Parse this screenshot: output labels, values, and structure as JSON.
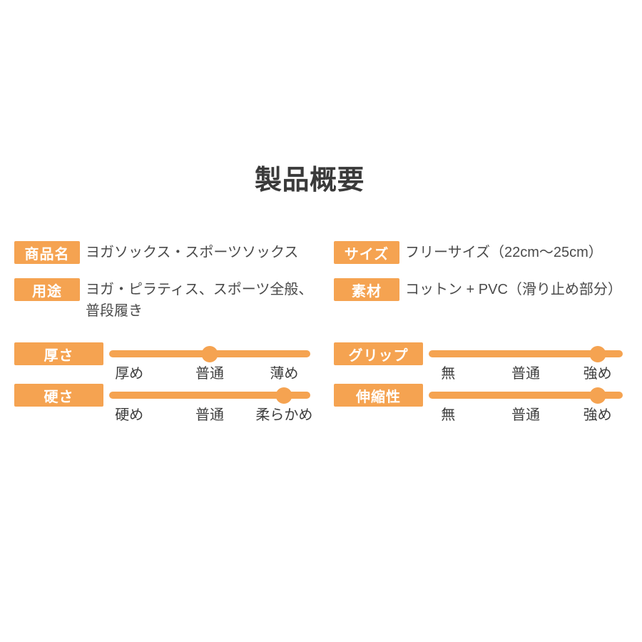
{
  "page": {
    "title": "製品概要",
    "background_color": "#ffffff",
    "accent_color": "#F5A351",
    "title_color": "#3a3a3a",
    "body_text_color": "#4a4a4a"
  },
  "left_column": {
    "info_rows": [
      {
        "label": "商品名",
        "value": "ヨガソックス・スポーツソックス"
      },
      {
        "label": "用途",
        "value_lines": [
          "ヨガ・ピラティス、スポーツ全般、",
          "普段履き"
        ]
      }
    ],
    "sliders": [
      {
        "label": "厚さ",
        "ticks": [
          "厚め",
          "普通",
          "薄め"
        ],
        "selected": "普通",
        "position_percent": 50
      },
      {
        "label": "硬さ",
        "ticks": [
          "硬め",
          "普通",
          "柔らかめ"
        ],
        "selected": "柔らかめ",
        "position_percent": 87
      }
    ]
  },
  "right_column": {
    "info_rows": [
      {
        "label": "サイズ",
        "value": "フリーサイズ（22cm〜25cm）"
      },
      {
        "label": "素材",
        "value": "コットン + PVC（滑り止め部分）"
      }
    ],
    "sliders": [
      {
        "label": "グリップ",
        "ticks": [
          "無",
          "普通",
          "強め"
        ],
        "selected": "強め",
        "position_percent": 87
      },
      {
        "label": "伸縮性",
        "ticks": [
          "無",
          "普通",
          "強め"
        ],
        "selected": "強め",
        "position_percent": 87
      }
    ]
  }
}
